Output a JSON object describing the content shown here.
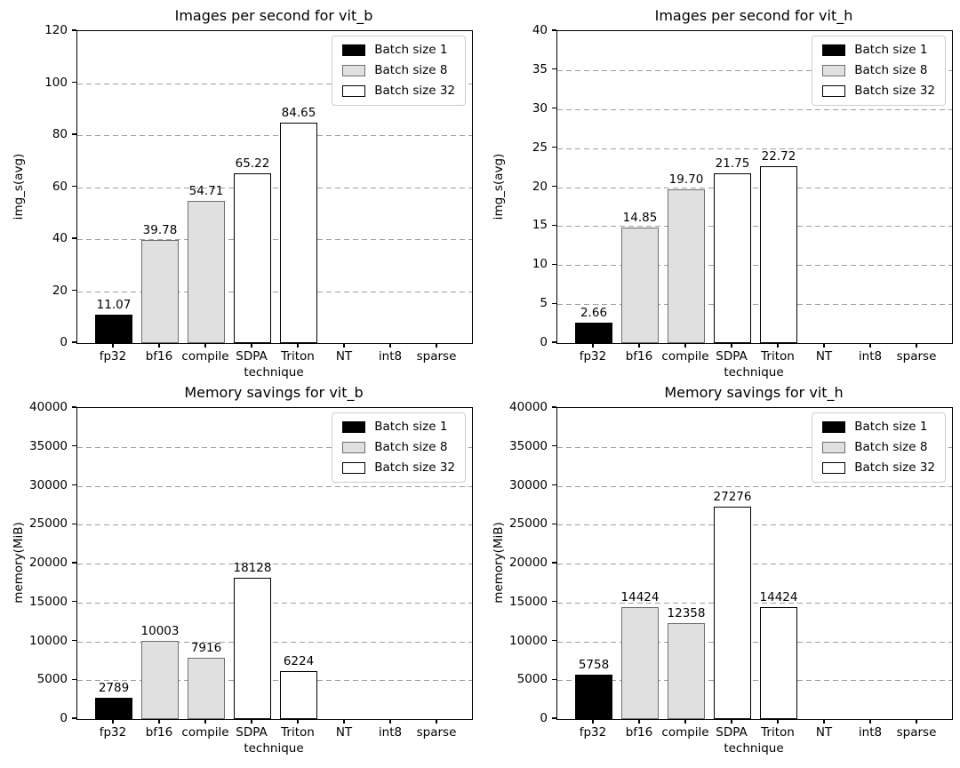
{
  "figure": {
    "background": "#ffffff",
    "grid_color": "#9e9e9e",
    "legend": {
      "position": "upper right",
      "entries": [
        {
          "label": "Batch size 1",
          "batch": 1,
          "fill": "#000000",
          "edge": "#000000"
        },
        {
          "label": "Batch size 8",
          "batch": 8,
          "fill": "#e0e0e0",
          "edge": "#6e6e6e"
        },
        {
          "label": "Batch size 32",
          "batch": 32,
          "fill": "#ffffff",
          "edge": "#000000"
        }
      ]
    }
  },
  "chart_data": [
    {
      "type": "bar",
      "title": "Images per second for vit_b",
      "xlabel": "technique",
      "ylabel": "img_s(avg)",
      "categories": [
        "fp32",
        "bf16",
        "compile",
        "SDPA",
        "Triton",
        "NT",
        "int8",
        "sparse"
      ],
      "ylim": [
        0,
        120
      ],
      "yticks": [
        0,
        20,
        40,
        60,
        80,
        100,
        120
      ],
      "grid": {
        "axis": "y",
        "style": "dashed"
      },
      "legend_position": "upper right",
      "bars": [
        {
          "category": "fp32",
          "value": 11.07,
          "label": "11.07",
          "batch": 1
        },
        {
          "category": "bf16",
          "value": 39.78,
          "label": "39.78",
          "batch": 8
        },
        {
          "category": "compile",
          "value": 54.71,
          "label": "54.71",
          "batch": 8
        },
        {
          "category": "SDPA",
          "value": 65.22,
          "label": "65.22",
          "batch": 32
        },
        {
          "category": "Triton",
          "value": 84.65,
          "label": "84.65",
          "batch": 32
        }
      ]
    },
    {
      "type": "bar",
      "title": "Images per second for vit_h",
      "xlabel": "technique",
      "ylabel": "img_s(avg)",
      "categories": [
        "fp32",
        "bf16",
        "compile",
        "SDPA",
        "Triton",
        "NT",
        "int8",
        "sparse"
      ],
      "ylim": [
        0,
        40
      ],
      "yticks": [
        0,
        5,
        10,
        15,
        20,
        25,
        30,
        35,
        40
      ],
      "grid": {
        "axis": "y",
        "style": "dashed"
      },
      "legend_position": "upper right",
      "bars": [
        {
          "category": "fp32",
          "value": 2.66,
          "label": "2.66",
          "batch": 1
        },
        {
          "category": "bf16",
          "value": 14.85,
          "label": "14.85",
          "batch": 8
        },
        {
          "category": "compile",
          "value": 19.7,
          "label": "19.70",
          "batch": 8
        },
        {
          "category": "SDPA",
          "value": 21.75,
          "label": "21.75",
          "batch": 32
        },
        {
          "category": "Triton",
          "value": 22.72,
          "label": "22.72",
          "batch": 32
        }
      ]
    },
    {
      "type": "bar",
      "title": "Memory savings for vit_b",
      "xlabel": "technique",
      "ylabel": "memory(MiB)",
      "categories": [
        "fp32",
        "bf16",
        "compile",
        "SDPA",
        "Triton",
        "NT",
        "int8",
        "sparse"
      ],
      "ylim": [
        0,
        40000
      ],
      "yticks": [
        0,
        5000,
        10000,
        15000,
        20000,
        25000,
        30000,
        35000,
        40000
      ],
      "grid": {
        "axis": "y",
        "style": "dashed"
      },
      "legend_position": "upper right",
      "bars": [
        {
          "category": "fp32",
          "value": 2789,
          "label": "2789",
          "batch": 1
        },
        {
          "category": "bf16",
          "value": 10003,
          "label": "10003",
          "batch": 8
        },
        {
          "category": "compile",
          "value": 7916,
          "label": "7916",
          "batch": 8
        },
        {
          "category": "SDPA",
          "value": 18128,
          "label": "18128",
          "batch": 32
        },
        {
          "category": "Triton",
          "value": 6224,
          "label": "6224",
          "batch": 32
        }
      ]
    },
    {
      "type": "bar",
      "title": "Memory savings for vit_h",
      "xlabel": "technique",
      "ylabel": "memory(MiB)",
      "categories": [
        "fp32",
        "bf16",
        "compile",
        "SDPA",
        "Triton",
        "NT",
        "int8",
        "sparse"
      ],
      "ylim": [
        0,
        40000
      ],
      "yticks": [
        0,
        5000,
        10000,
        15000,
        20000,
        25000,
        30000,
        35000,
        40000
      ],
      "grid": {
        "axis": "y",
        "style": "dashed"
      },
      "legend_position": "upper right",
      "bars": [
        {
          "category": "fp32",
          "value": 5758,
          "label": "5758",
          "batch": 1
        },
        {
          "category": "bf16",
          "value": 14424,
          "label": "14424",
          "batch": 8
        },
        {
          "category": "compile",
          "value": 12358,
          "label": "12358",
          "batch": 8
        },
        {
          "category": "SDPA",
          "value": 27276,
          "label": "27276",
          "batch": 32
        },
        {
          "category": "Triton",
          "value": 14424,
          "label": "14424",
          "batch": 32
        }
      ]
    }
  ]
}
